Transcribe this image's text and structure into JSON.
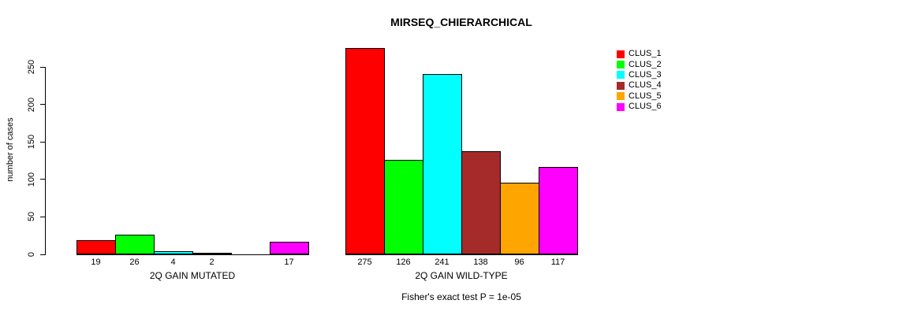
{
  "chart_data": {
    "type": "bar",
    "title": "MIRSEQ_CHIERARCHICAL",
    "ylabel": "number of cases",
    "xlabel": "",
    "yticks": [
      0,
      50,
      100,
      150,
      200,
      250
    ],
    "ylim": [
      0,
      278
    ],
    "grid": false,
    "legend_position": "right",
    "categories": [
      "2Q GAIN MUTATED",
      "2Q GAIN WILD-TYPE"
    ],
    "series": [
      {
        "name": "CLUS_1",
        "color": "#FF0000",
        "values": [
          19,
          275
        ]
      },
      {
        "name": "CLUS_2",
        "color": "#00FF00",
        "values": [
          26,
          126
        ]
      },
      {
        "name": "CLUS_3",
        "color": "#00FFFF",
        "values": [
          4,
          241
        ]
      },
      {
        "name": "CLUS_4",
        "color": "#A52A2A",
        "values": [
          2,
          138
        ]
      },
      {
        "name": "CLUS_5",
        "color": "#FFA500",
        "values": [
          0,
          96
        ]
      },
      {
        "name": "CLUS_6",
        "color": "#FF00FF",
        "values": [
          17,
          117
        ]
      }
    ],
    "bar_value_labels": {
      "2Q GAIN MUTATED": [
        "19",
        "26",
        "4",
        "2",
        "",
        "17"
      ],
      "2Q GAIN WILD-TYPE": [
        "275",
        "126",
        "241",
        "138",
        "96",
        "117"
      ]
    },
    "annotation": "Fisher's exact test P = 1e-05",
    "axis_color": "#000000",
    "background_color": "#ffffff"
  }
}
